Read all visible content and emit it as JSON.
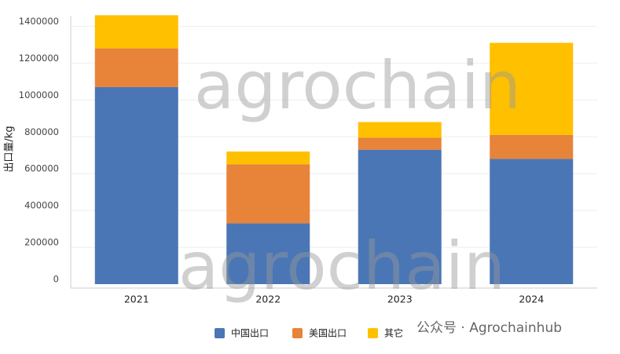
{
  "chart_data": {
    "type": "stacked_bar",
    "y_label": "出口量/kg",
    "categories": [
      "2021",
      "2022",
      "2023",
      "2024"
    ],
    "series": [
      {
        "name": "中国出口",
        "color": "#4a76b5",
        "values": [
          1070000,
          330000,
          730000,
          680000
        ]
      },
      {
        "name": "美国出口",
        "color": "#e8833a",
        "values": [
          210000,
          320000,
          65000,
          130000
        ]
      },
      {
        "name": "其它",
        "color": "#ffc000",
        "values": [
          180000,
          70000,
          85000,
          500000
        ]
      }
    ],
    "ylim": [
      0,
      1500000
    ],
    "yticks": [
      0,
      200000,
      400000,
      600000,
      800000,
      1000000,
      1200000,
      1400000
    ],
    "grid": true,
    "legend": "bottom",
    "watermark": "agrochain",
    "source": "公众号 · Agrochainhub"
  }
}
